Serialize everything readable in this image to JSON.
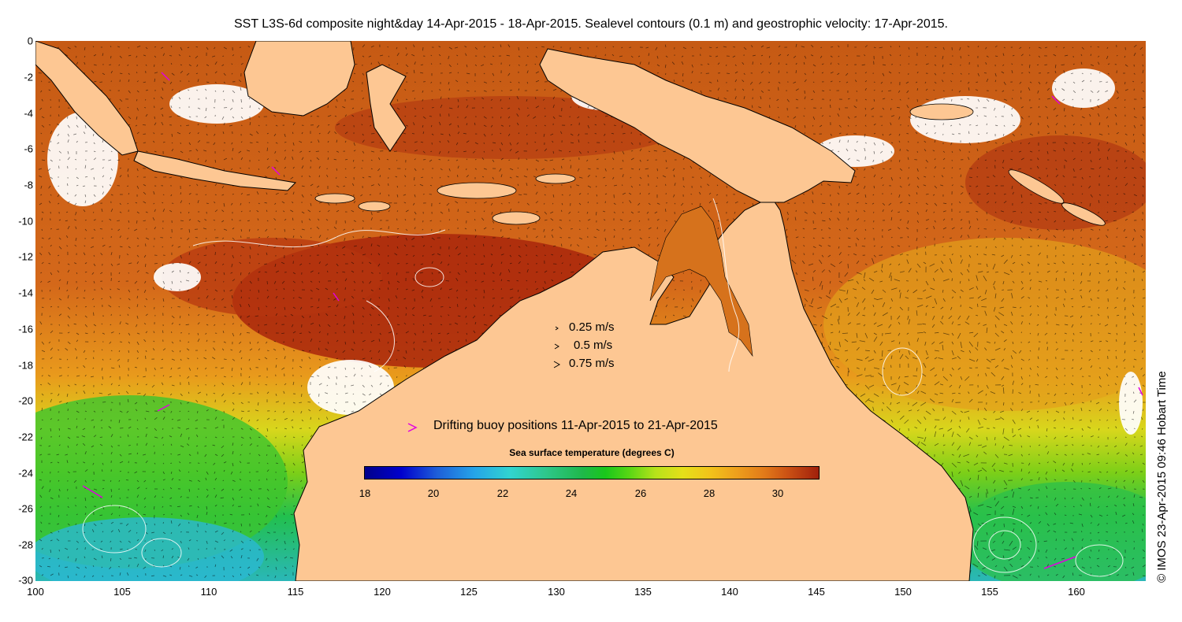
{
  "title": "SST L3S-6d composite night&day 14-Apr-2015 - 18-Apr-2015. Sealevel contours (0.1 m) and geostrophic velocity: 17-Apr-2015.",
  "axes": {
    "lon_ticks": [
      "100",
      "105",
      "110",
      "115",
      "120",
      "125",
      "130",
      "135",
      "140",
      "145",
      "150",
      "155",
      "160"
    ],
    "lat_ticks": [
      "0",
      "-2",
      "-4",
      "-6",
      "-8",
      "-10",
      "-12",
      "-14",
      "-16",
      "-18",
      "-20",
      "-22",
      "-24",
      "-26",
      "-28",
      "-30"
    ]
  },
  "velocity_legend": [
    "0.25 m/s",
    "0.5 m/s",
    "0.75 m/s"
  ],
  "buoy_legend": "Drifting buoy positions 11-Apr-2015 to 21-Apr-2015",
  "colorbar": {
    "title": "Sea surface temperature (degrees C)",
    "ticks": [
      "18",
      "20",
      "22",
      "24",
      "26",
      "28",
      "30"
    ],
    "range": [
      18,
      31.2
    ]
  },
  "credit": "© IMOS 23-Apr-2015 09:46 Hobart Time",
  "colors": {
    "land": "#fdc793",
    "buoy": "#e000e0",
    "warm": "#b8400f",
    "hot": "#a01e0a",
    "cool": "#20b84a",
    "cold": "#31c4d8"
  }
}
